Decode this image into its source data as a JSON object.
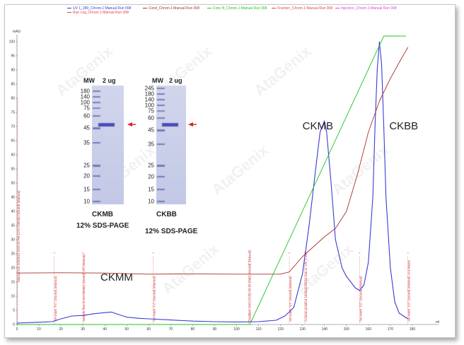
{
  "chart_data": {
    "type": "line",
    "x_unit": "ml",
    "y_unit": "mAU",
    "xlim": [
      0,
      190
    ],
    "ylim": [
      0,
      100
    ],
    "x_ticks": [
      0,
      10,
      20,
      30,
      40,
      50,
      60,
      70,
      80,
      90,
      100,
      110,
      120,
      130,
      140,
      150,
      160,
      170,
      180
    ],
    "y_ticks": [
      0,
      5,
      10,
      15,
      20,
      25,
      30,
      35,
      40,
      45,
      50,
      55,
      60,
      65,
      70,
      75,
      80,
      85,
      90,
      95,
      100
    ],
    "legend": [
      {
        "name": "UV 1_280_Chrom.1:Manual Run 008",
        "color": "#3a3ad6"
      },
      {
        "name": "Cond_Chrom.1:Manual Run 008",
        "color": "#a83030"
      },
      {
        "name": "Conc B_Chrom.1:Manual Run 008",
        "color": "#22c422"
      },
      {
        "name": "Fraction_Chrom.1:Manual Run 008",
        "color": "#e04444"
      },
      {
        "name": "Injection_Chrom.1:Manual Run 008",
        "color": "#e040e0"
      },
      {
        "name": "Run Log_Chrom.1:Manual Run 008",
        "color": "#e04444"
      }
    ],
    "series": [
      {
        "key": "uv",
        "color": "#3a3ad6",
        "x": [
          0,
          10,
          16,
          20,
          25,
          30,
          35,
          40,
          43,
          46,
          50,
          55,
          60,
          70,
          80,
          90,
          100,
          110,
          118,
          122,
          126,
          130,
          133,
          136,
          138,
          140,
          141,
          143,
          145,
          148,
          150,
          152,
          154,
          156,
          158,
          160,
          162,
          163,
          164,
          165,
          166,
          167,
          168,
          170,
          172,
          174,
          176,
          178
        ],
        "y": [
          0.5,
          0.8,
          1,
          2,
          3,
          3.2,
          3.8,
          4.2,
          4.4,
          3.6,
          2.6,
          2.2,
          2.0,
          1.6,
          1.2,
          1.0,
          0.9,
          1.0,
          1.5,
          3,
          6,
          18,
          35,
          55,
          68,
          72,
          68,
          50,
          30,
          20,
          17,
          15,
          13,
          12,
          14,
          22,
          45,
          70,
          90,
          100,
          92,
          70,
          45,
          20,
          8,
          4,
          3,
          2
        ]
      },
      {
        "key": "cond",
        "color": "#a83030",
        "x": [
          0,
          20,
          40,
          60,
          80,
          100,
          110,
          120,
          124,
          130,
          140,
          145,
          150,
          155,
          160,
          165,
          170,
          175,
          178
        ],
        "y": [
          18.2,
          18.3,
          18.2,
          17.8,
          17.9,
          17.8,
          17.8,
          17.8,
          18.6,
          24.0,
          31.0,
          34.0,
          40.0,
          53.0,
          68.0,
          79.0,
          87.0,
          94.0,
          98.0
        ]
      },
      {
        "key": "concb",
        "color": "#22c422",
        "x": [
          0,
          106,
          167,
          177
        ],
        "y": [
          0,
          0,
          102,
          102
        ]
      }
    ],
    "fraction_marks": [
      {
        "x": 17,
        "label": "Set mark \"F1\" (Issued) (Manual)"
      },
      {
        "x": 30,
        "label": "Sample flow (0.50 ml/min) (Issued) Off (Manual)"
      },
      {
        "x": 62,
        "label": "Set mark \"F2\" (Issued) (Manual)"
      },
      {
        "x": 105.5,
        "label": "Gradient 100.0 {%B} 40.00 {min} (Issued) (Manual)"
      },
      {
        "x": 124,
        "label": "Set mark \"S1\" (Issued) (Manual)"
      },
      {
        "x": 131,
        "label": "Column position settings a/b/a2 mm to 'UV_1 280'"
      },
      {
        "x": 156,
        "label": "Set mark \"S2\" (Issued) (Manual)"
      },
      {
        "x": 178,
        "label": "Set mark \"S3\" (Issued) (Manual) Out-Waste"
      }
    ],
    "left_mark_label": "Manual run 2/3/2015 9:52:23 PM (UTC+08:00) (Issued) (Manual)",
    "peak_labels": [
      {
        "text": "CKMM",
        "x": 38,
        "y": 15.5
      },
      {
        "text": "CKMB",
        "x": 130,
        "y": 69
      },
      {
        "text": "CKBB",
        "x": 169.5,
        "y": 69
      }
    ],
    "x_end_label": "ml",
    "watermark": "AtaGenix"
  },
  "gels": [
    {
      "key": "left",
      "caption": "CKMB",
      "subcaption": "12% SDS-PAGE",
      "mw_header": "MW",
      "lane_header": "2 ug",
      "markers": [
        "180",
        "140",
        "100",
        "75",
        "60",
        "45",
        "35",
        "25",
        "20",
        "15",
        "10"
      ]
    },
    {
      "key": "right",
      "caption": "CKBB",
      "subcaption": "12% SDS-PAGE",
      "mw_header": "MW",
      "lane_header": "2 ug",
      "markers": [
        "245",
        "180",
        "140",
        "100",
        "75",
        "60",
        "45",
        "35",
        "25",
        "20",
        "15",
        "10"
      ]
    }
  ]
}
